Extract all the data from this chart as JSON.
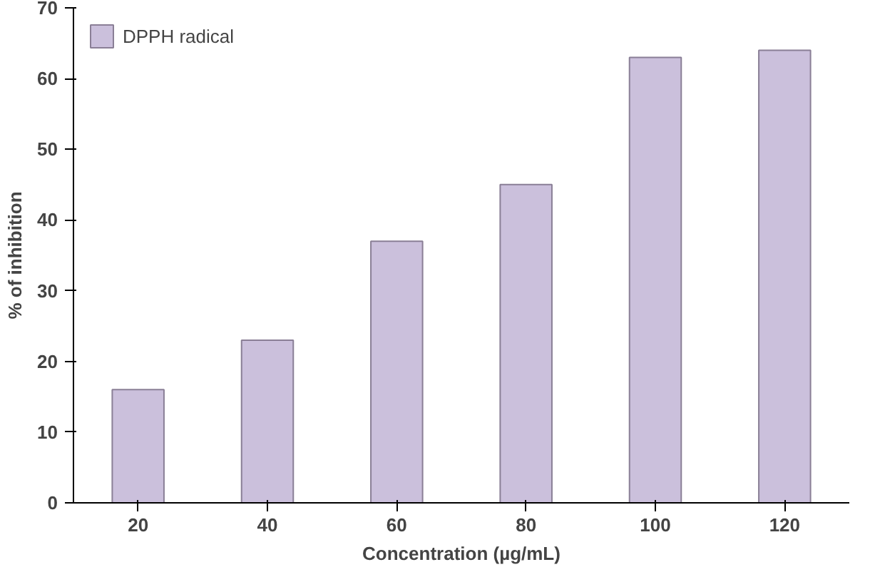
{
  "chart_data": {
    "type": "bar",
    "xlabel": "Concentration (µg/mL)",
    "ylabel": "% of inhibition",
    "categories": [
      "20",
      "40",
      "60",
      "80",
      "100",
      "120"
    ],
    "series": [
      {
        "name": "DPPH radical",
        "color": "#cbc0dc",
        "values": [
          16,
          23,
          37,
          45,
          63,
          64
        ]
      }
    ],
    "ylim": [
      0,
      70
    ],
    "yticks": [
      0,
      10,
      20,
      30,
      40,
      50,
      60,
      70
    ],
    "grid": false,
    "legend": "top left"
  }
}
